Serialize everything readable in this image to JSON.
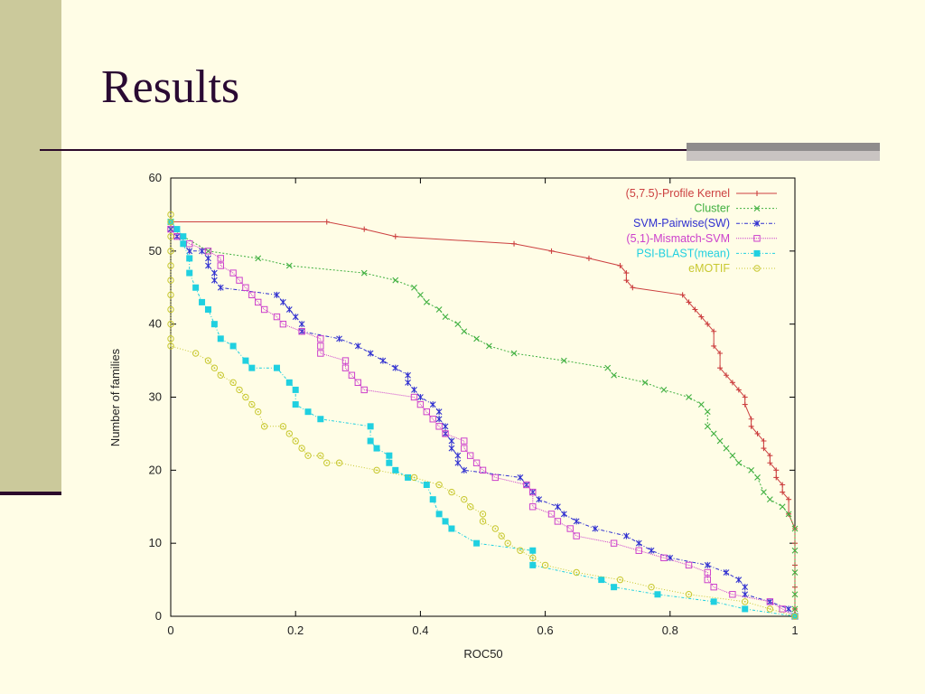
{
  "slide": {
    "title": "Results"
  },
  "colors": {
    "background": "#fffde6",
    "left_bar": "#cbc99b",
    "title": "#2a0a33",
    "rule": "#2c0a2a"
  },
  "chart_data": {
    "type": "line",
    "title": "",
    "xlabel": "ROC50",
    "ylabel": "Number of families",
    "xlim": [
      0,
      1
    ],
    "ylim": [
      0,
      60
    ],
    "x_ticks": [
      "0",
      "0.2",
      "0.4",
      "0.6",
      "0.8",
      "1"
    ],
    "y_ticks": [
      "0",
      "10",
      "20",
      "30",
      "40",
      "50",
      "60"
    ],
    "grid": false,
    "legend_position": "top-right",
    "series": [
      {
        "name": "(5,7.5)-Profile Kernel",
        "color": "#cc4040",
        "marker": "plus",
        "dash": "",
        "points": [
          [
            0,
            54
          ],
          [
            0.25,
            54
          ],
          [
            0.31,
            53
          ],
          [
            0.36,
            52
          ],
          [
            0.55,
            51
          ],
          [
            0.61,
            50
          ],
          [
            0.67,
            49
          ],
          [
            0.72,
            48
          ],
          [
            0.73,
            47
          ],
          [
            0.73,
            46
          ],
          [
            0.74,
            45
          ],
          [
            0.82,
            44
          ],
          [
            0.83,
            43
          ],
          [
            0.84,
            42
          ],
          [
            0.85,
            41
          ],
          [
            0.86,
            40
          ],
          [
            0.87,
            39
          ],
          [
            0.87,
            37
          ],
          [
            0.88,
            36
          ],
          [
            0.88,
            34
          ],
          [
            0.89,
            33
          ],
          [
            0.9,
            32
          ],
          [
            0.91,
            31
          ],
          [
            0.92,
            30
          ],
          [
            0.92,
            29
          ],
          [
            0.93,
            27
          ],
          [
            0.93,
            26
          ],
          [
            0.94,
            25
          ],
          [
            0.95,
            24
          ],
          [
            0.95,
            23
          ],
          [
            0.96,
            22
          ],
          [
            0.96,
            21
          ],
          [
            0.97,
            20
          ],
          [
            0.97,
            19
          ],
          [
            0.98,
            18
          ],
          [
            0.98,
            17
          ],
          [
            0.99,
            16
          ],
          [
            0.99,
            14
          ],
          [
            1,
            12
          ],
          [
            1,
            10
          ],
          [
            1,
            7
          ],
          [
            1,
            4
          ],
          [
            1,
            1
          ]
        ]
      },
      {
        "name": "Cluster",
        "color": "#40b040",
        "marker": "x",
        "dash": "2,2",
        "points": [
          [
            0,
            53
          ],
          [
            0.06,
            50
          ],
          [
            0.14,
            49
          ],
          [
            0.19,
            48
          ],
          [
            0.31,
            47
          ],
          [
            0.36,
            46
          ],
          [
            0.39,
            45
          ],
          [
            0.4,
            44
          ],
          [
            0.41,
            43
          ],
          [
            0.43,
            42
          ],
          [
            0.44,
            41
          ],
          [
            0.46,
            40
          ],
          [
            0.47,
            39
          ],
          [
            0.49,
            38
          ],
          [
            0.51,
            37
          ],
          [
            0.55,
            36
          ],
          [
            0.63,
            35
          ],
          [
            0.7,
            34
          ],
          [
            0.71,
            33
          ],
          [
            0.76,
            32
          ],
          [
            0.79,
            31
          ],
          [
            0.83,
            30
          ],
          [
            0.85,
            29
          ],
          [
            0.86,
            28
          ],
          [
            0.86,
            26
          ],
          [
            0.87,
            25
          ],
          [
            0.88,
            24
          ],
          [
            0.89,
            23
          ],
          [
            0.9,
            22
          ],
          [
            0.91,
            21
          ],
          [
            0.93,
            20
          ],
          [
            0.94,
            19
          ],
          [
            0.95,
            17
          ],
          [
            0.96,
            16
          ],
          [
            0.98,
            15
          ],
          [
            0.99,
            14
          ],
          [
            1,
            12
          ],
          [
            1,
            9
          ],
          [
            1,
            6
          ],
          [
            1,
            3
          ],
          [
            1,
            1
          ]
        ]
      },
      {
        "name": "SVM-Pairwise(SW)",
        "color": "#3030d0",
        "marker": "asterisk",
        "dash": "4,2,1,2",
        "points": [
          [
            0,
            53
          ],
          [
            0.01,
            52
          ],
          [
            0.02,
            51
          ],
          [
            0.03,
            50
          ],
          [
            0.05,
            50
          ],
          [
            0.06,
            49
          ],
          [
            0.06,
            48
          ],
          [
            0.07,
            47
          ],
          [
            0.07,
            46
          ],
          [
            0.08,
            45
          ],
          [
            0.17,
            44
          ],
          [
            0.18,
            43
          ],
          [
            0.19,
            42
          ],
          [
            0.2,
            41
          ],
          [
            0.21,
            40
          ],
          [
            0.21,
            39
          ],
          [
            0.27,
            38
          ],
          [
            0.3,
            37
          ],
          [
            0.32,
            36
          ],
          [
            0.34,
            35
          ],
          [
            0.36,
            34
          ],
          [
            0.38,
            33
          ],
          [
            0.38,
            32
          ],
          [
            0.39,
            31
          ],
          [
            0.4,
            30
          ],
          [
            0.42,
            29
          ],
          [
            0.43,
            28
          ],
          [
            0.43,
            27
          ],
          [
            0.44,
            26
          ],
          [
            0.44,
            25
          ],
          [
            0.45,
            24
          ],
          [
            0.45,
            23
          ],
          [
            0.46,
            22
          ],
          [
            0.46,
            21
          ],
          [
            0.47,
            20
          ],
          [
            0.56,
            19
          ],
          [
            0.57,
            18
          ],
          [
            0.58,
            17
          ],
          [
            0.59,
            16
          ],
          [
            0.62,
            15
          ],
          [
            0.63,
            14
          ],
          [
            0.65,
            13
          ],
          [
            0.68,
            12
          ],
          [
            0.73,
            11
          ],
          [
            0.75,
            10
          ],
          [
            0.77,
            9
          ],
          [
            0.8,
            8
          ],
          [
            0.86,
            7
          ],
          [
            0.89,
            6
          ],
          [
            0.91,
            5
          ],
          [
            0.92,
            4
          ],
          [
            0.92,
            3
          ],
          [
            0.96,
            2
          ],
          [
            0.99,
            1
          ],
          [
            1,
            0
          ]
        ]
      },
      {
        "name": "(5,1)-Mismatch-SVM",
        "color": "#cc40cc",
        "marker": "square-open",
        "dash": "1,1",
        "points": [
          [
            0,
            53
          ],
          [
            0.01,
            52
          ],
          [
            0.03,
            51
          ],
          [
            0.06,
            50
          ],
          [
            0.08,
            49
          ],
          [
            0.08,
            48
          ],
          [
            0.1,
            47
          ],
          [
            0.11,
            46
          ],
          [
            0.12,
            45
          ],
          [
            0.13,
            44
          ],
          [
            0.14,
            43
          ],
          [
            0.15,
            42
          ],
          [
            0.17,
            41
          ],
          [
            0.18,
            40
          ],
          [
            0.21,
            39
          ],
          [
            0.24,
            38
          ],
          [
            0.24,
            37
          ],
          [
            0.24,
            36
          ],
          [
            0.28,
            35
          ],
          [
            0.28,
            34
          ],
          [
            0.29,
            33
          ],
          [
            0.3,
            32
          ],
          [
            0.31,
            31
          ],
          [
            0.39,
            30
          ],
          [
            0.4,
            29
          ],
          [
            0.41,
            28
          ],
          [
            0.42,
            27
          ],
          [
            0.43,
            26
          ],
          [
            0.44,
            25
          ],
          [
            0.47,
            24
          ],
          [
            0.47,
            23
          ],
          [
            0.48,
            22
          ],
          [
            0.49,
            21
          ],
          [
            0.5,
            20
          ],
          [
            0.52,
            19
          ],
          [
            0.57,
            18
          ],
          [
            0.58,
            17
          ],
          [
            0.58,
            15
          ],
          [
            0.61,
            14
          ],
          [
            0.62,
            13
          ],
          [
            0.64,
            12
          ],
          [
            0.65,
            11
          ],
          [
            0.71,
            10
          ],
          [
            0.75,
            9
          ],
          [
            0.79,
            8
          ],
          [
            0.83,
            7
          ],
          [
            0.86,
            6
          ],
          [
            0.86,
            5
          ],
          [
            0.87,
            4
          ],
          [
            0.9,
            3
          ],
          [
            0.96,
            2
          ],
          [
            0.98,
            1
          ],
          [
            1,
            0
          ]
        ]
      },
      {
        "name": "PSI-BLAST(mean)",
        "color": "#20d0e0",
        "marker": "square-filled",
        "dash": "3,2,1,2",
        "points": [
          [
            0,
            54
          ],
          [
            0.01,
            53
          ],
          [
            0.02,
            52
          ],
          [
            0.02,
            51
          ],
          [
            0.03,
            49
          ],
          [
            0.03,
            47
          ],
          [
            0.04,
            45
          ],
          [
            0.05,
            43
          ],
          [
            0.06,
            42
          ],
          [
            0.07,
            40
          ],
          [
            0.08,
            38
          ],
          [
            0.1,
            37
          ],
          [
            0.12,
            35
          ],
          [
            0.13,
            34
          ],
          [
            0.17,
            34
          ],
          [
            0.19,
            32
          ],
          [
            0.2,
            31
          ],
          [
            0.2,
            29
          ],
          [
            0.22,
            28
          ],
          [
            0.24,
            27
          ],
          [
            0.32,
            26
          ],
          [
            0.32,
            24
          ],
          [
            0.33,
            23
          ],
          [
            0.35,
            22
          ],
          [
            0.35,
            21
          ],
          [
            0.36,
            20
          ],
          [
            0.38,
            19
          ],
          [
            0.41,
            18
          ],
          [
            0.42,
            16
          ],
          [
            0.43,
            14
          ],
          [
            0.44,
            13
          ],
          [
            0.45,
            12
          ],
          [
            0.49,
            10
          ],
          [
            0.58,
            9
          ],
          [
            0.58,
            7
          ],
          [
            0.69,
            5
          ],
          [
            0.71,
            4
          ],
          [
            0.78,
            3
          ],
          [
            0.87,
            2
          ],
          [
            0.92,
            1
          ],
          [
            1,
            0
          ]
        ]
      },
      {
        "name": "eMOTIF",
        "color": "#c8c830",
        "marker": "circle-dot",
        "dash": "1,2",
        "points": [
          [
            0,
            55
          ],
          [
            0,
            54
          ],
          [
            0,
            52
          ],
          [
            0,
            50
          ],
          [
            0,
            48
          ],
          [
            0,
            46
          ],
          [
            0,
            44
          ],
          [
            0,
            42
          ],
          [
            0,
            40
          ],
          [
            0,
            38
          ],
          [
            0,
            37
          ],
          [
            0.04,
            36
          ],
          [
            0.06,
            35
          ],
          [
            0.07,
            34
          ],
          [
            0.08,
            33
          ],
          [
            0.1,
            32
          ],
          [
            0.11,
            31
          ],
          [
            0.12,
            30
          ],
          [
            0.13,
            29
          ],
          [
            0.14,
            28
          ],
          [
            0.15,
            26
          ],
          [
            0.18,
            26
          ],
          [
            0.19,
            25
          ],
          [
            0.2,
            24
          ],
          [
            0.21,
            23
          ],
          [
            0.22,
            22
          ],
          [
            0.24,
            22
          ],
          [
            0.25,
            21
          ],
          [
            0.27,
            21
          ],
          [
            0.33,
            20
          ],
          [
            0.39,
            19
          ],
          [
            0.43,
            18
          ],
          [
            0.45,
            17
          ],
          [
            0.47,
            16
          ],
          [
            0.48,
            15
          ],
          [
            0.5,
            14
          ],
          [
            0.5,
            13
          ],
          [
            0.52,
            12
          ],
          [
            0.53,
            11
          ],
          [
            0.54,
            10
          ],
          [
            0.56,
            9
          ],
          [
            0.58,
            8
          ],
          [
            0.6,
            7
          ],
          [
            0.65,
            6
          ],
          [
            0.72,
            5
          ],
          [
            0.77,
            4
          ],
          [
            0.83,
            3
          ],
          [
            0.92,
            2
          ],
          [
            0.96,
            1
          ],
          [
            1,
            0
          ]
        ]
      }
    ]
  }
}
